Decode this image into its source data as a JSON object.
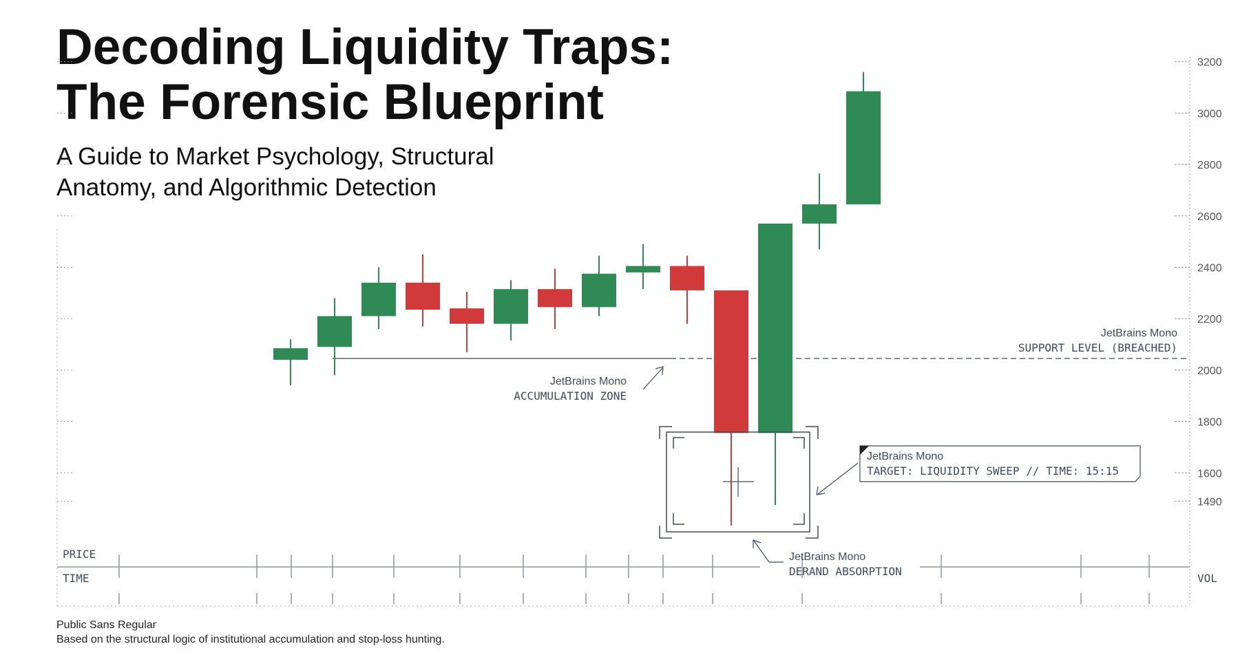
{
  "chart_data": {
    "type": "candlestick",
    "title": [
      "Decoding Liquidity Traps:",
      "The Forensic Blueprint"
    ],
    "subtitle": [
      "A Guide to Market Psychology, Structural",
      "Anatomy, and Algorithmic Detection"
    ],
    "open": [
      2040,
      2090,
      2210,
      2340,
      2240,
      2180,
      2315,
      2245,
      2380,
      2405,
      2310,
      1755,
      2570,
      2645
    ],
    "high": [
      2120,
      2280,
      2400,
      2450,
      2305,
      2350,
      2395,
      2445,
      2490,
      2445,
      2310,
      2570,
      2765,
      3160
    ],
    "low": [
      1940,
      1980,
      2160,
      2170,
      2070,
      2115,
      2160,
      2210,
      2315,
      2180,
      1395,
      1475,
      2470,
      2645
    ],
    "close": [
      2085,
      2210,
      2340,
      2235,
      2180,
      2315,
      2245,
      2375,
      2405,
      2310,
      1755,
      2570,
      2645,
      3085
    ],
    "up_color": "#2f8a56",
    "down_color": "#d13a3a",
    "ylim": [
      1100,
      3250
    ],
    "yticks": [
      1490,
      1600,
      1800,
      2000,
      2200,
      2400,
      2600,
      2800,
      3000,
      3200
    ],
    "support_level": 2045,
    "axis_labels": {
      "price": "PRICE",
      "time": "TIME",
      "volume": "VOL"
    },
    "annotations": {
      "support": {
        "caption": "JetBrains Mono",
        "text": "SUPPORT LEVEL (BREACHED)"
      },
      "accumulation": {
        "caption": "JetBrains Mono",
        "text": "ACCUMULATION ZONE"
      },
      "target": {
        "caption": "JetBrains Mono",
        "text": "TARGET: LIQUIDITY SWEEP // TIME: 15:15"
      },
      "absorption": {
        "caption": "JetBrains Mono",
        "text": "DERAND ABSORPTION"
      }
    },
    "footer": {
      "caption": "Public Sans Regular",
      "text": "Based on the structural logic of institutional accumulation and stop-loss hunting."
    }
  }
}
